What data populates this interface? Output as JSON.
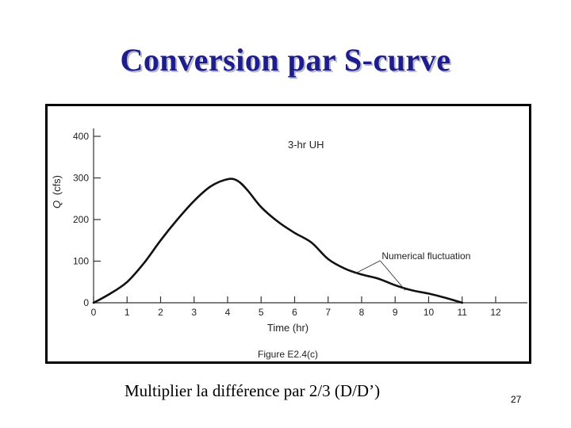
{
  "slide": {
    "title": "Conversion par S-curve",
    "caption": "Multiplier la différence par 2/3 (D/D’)",
    "page_number": "27"
  },
  "chart_data": {
    "type": "line",
    "title": "3-hr UH",
    "figure_label": "Figure E2.4(c)",
    "xlabel": "Time (hr)",
    "ylabel_var": "Q",
    "ylabel_unit": "(cfs)",
    "xlim": [
      0,
      12
    ],
    "ylim": [
      0,
      400
    ],
    "xticks": [
      0,
      1,
      2,
      3,
      4,
      5,
      6,
      7,
      8,
      9,
      10,
      11,
      12
    ],
    "yticks": [
      0,
      100,
      200,
      300,
      400
    ],
    "grid": false,
    "series": [
      {
        "x": [
          0,
          0.5,
          1,
          1.5,
          2,
          2.5,
          3,
          3.5,
          4,
          4.3,
          4.6,
          5,
          5.5,
          6,
          6.5,
          7,
          7.5,
          8,
          8.5,
          9,
          9.5,
          10,
          10.5,
          11
        ],
        "values": [
          0,
          22,
          50,
          95,
          150,
          200,
          245,
          280,
          297,
          293,
          270,
          230,
          195,
          168,
          145,
          105,
          82,
          68,
          58,
          42,
          30,
          22,
          12,
          0
        ]
      }
    ],
    "annotation": {
      "text": "Numerical fluctuation",
      "points": [
        [
          7.8,
          70
        ],
        [
          9.3,
          30
        ]
      ]
    },
    "colors": {
      "line": "#111111",
      "axis": "#333333"
    }
  }
}
